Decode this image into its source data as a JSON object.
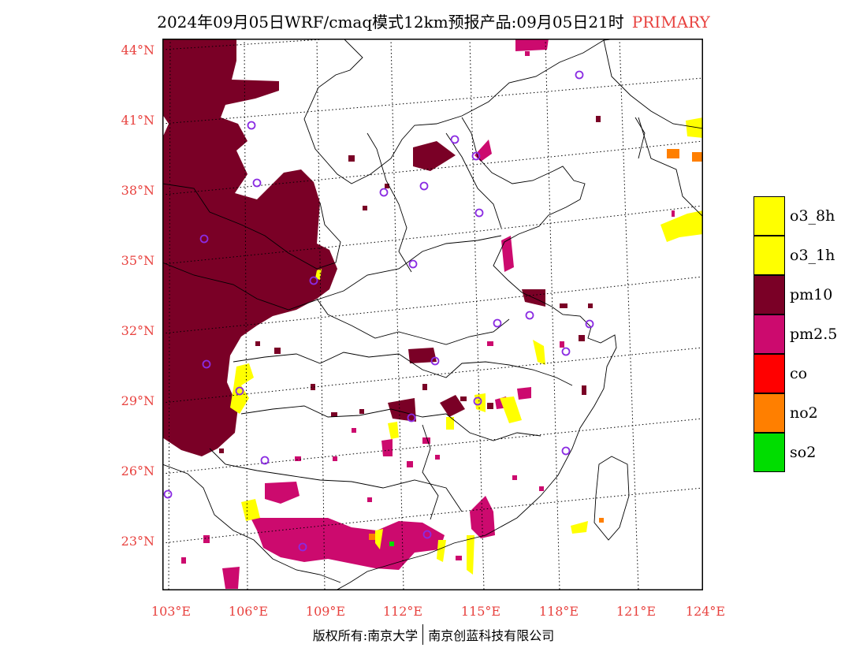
{
  "header": {
    "title": "2024年09月05日WRF/cmaq模式12km预报产品:09月05日21时",
    "tag": "PRIMARY"
  },
  "axes": {
    "lat_labels": [
      "44°N",
      "41°N",
      "38°N",
      "35°N",
      "32°N",
      "29°N",
      "26°N",
      "23°N"
    ],
    "lon_labels": [
      "103°E",
      "106°E",
      "109°E",
      "112°E",
      "115°E",
      "118°E",
      "121°E",
      "124°E"
    ]
  },
  "legend": {
    "items": [
      {
        "label": "o3_8h",
        "color": "#ffff00"
      },
      {
        "label": "o3_1h",
        "color": "#ffff00"
      },
      {
        "label": "pm10",
        "color": "#7a0026"
      },
      {
        "label": "pm2.5",
        "color": "#cc0a6e"
      },
      {
        "label": "co",
        "color": "#ff0000"
      },
      {
        "label": "no2",
        "color": "#ff7f00"
      },
      {
        "label": "so2",
        "color": "#00dd00"
      }
    ]
  },
  "footer": {
    "copyright": "版权所有:南京大学",
    "company": "南京创蓝科技有限公司"
  },
  "colors": {
    "accent": "#e8423f",
    "o3": "#ffff00",
    "pm10": "#7a0026",
    "pm25": "#cc0a6e",
    "no2": "#ff7f00",
    "so2": "#00dd00",
    "station": "#8a2be2"
  }
}
